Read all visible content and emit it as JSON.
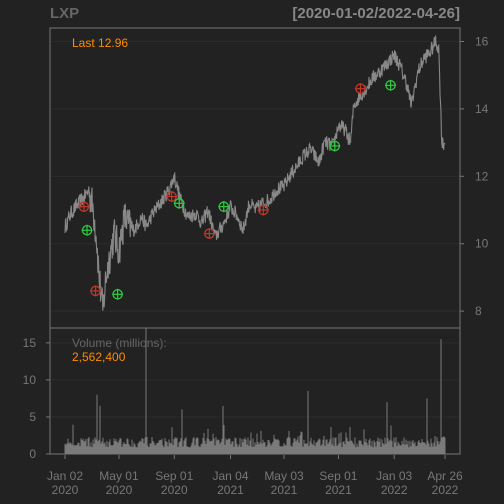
{
  "header": {
    "symbol": "LXP",
    "range": "[2020-01-02/2022-04-26]"
  },
  "colors": {
    "background": "#222222",
    "price_line": "#888888",
    "volume_bar": "#7a7a7a",
    "frame": "#777777",
    "grid": "#2c2c2c",
    "last_label": "#ff8c00",
    "buy_marker": "#2ecc40",
    "sell_marker": "#c0392b",
    "axis_text": "#777777"
  },
  "chart_data": [
    {
      "type": "line",
      "name": "price-panel",
      "annotation": "Last 12.96",
      "x_ticks": [
        {
          "date": "2020-01-02",
          "label": [
            "Jan 02",
            "2020"
          ]
        },
        {
          "date": "2020-05-01",
          "label": [
            "May 01",
            "2020"
          ]
        },
        {
          "date": "2020-09-01",
          "label": [
            "Sep 01",
            "2020"
          ]
        },
        {
          "date": "2021-01-04",
          "label": [
            "Jan 04",
            "2021"
          ]
        },
        {
          "date": "2021-05-03",
          "label": [
            "May 03",
            "2021"
          ]
        },
        {
          "date": "2021-09-01",
          "label": [
            "Sep 01",
            "2021"
          ]
        },
        {
          "date": "2022-01-03",
          "label": [
            "Jan 03",
            "2022"
          ]
        },
        {
          "date": "2022-04-26",
          "label": [
            "Apr 26",
            "2022"
          ]
        }
      ],
      "y_ticks": [
        8,
        10,
        12,
        14,
        16
      ],
      "ylim": [
        7.5,
        16.4
      ],
      "series": [
        {
          "x": [
            "2020-01-02",
            "2020-01-15",
            "2020-02-01",
            "2020-02-15",
            "2020-02-24",
            "2020-03-05",
            "2020-03-12",
            "2020-03-18",
            "2020-03-23",
            "2020-03-26",
            "2020-04-02",
            "2020-04-10",
            "2020-04-20",
            "2020-05-01",
            "2020-05-14",
            "2020-05-20",
            "2020-06-01",
            "2020-06-08",
            "2020-06-20",
            "2020-07-01",
            "2020-07-15",
            "2020-08-01",
            "2020-08-20",
            "2020-09-01",
            "2020-09-15",
            "2020-10-01",
            "2020-10-20",
            "2020-11-01",
            "2020-11-15",
            "2020-12-01",
            "2020-12-20",
            "2021-01-04",
            "2021-01-20",
            "2021-02-01",
            "2021-02-15",
            "2021-03-01",
            "2021-03-15",
            "2021-04-01",
            "2021-04-15",
            "2021-05-03",
            "2021-05-20",
            "2021-06-01",
            "2021-06-15",
            "2021-07-01",
            "2021-07-20",
            "2021-08-01",
            "2021-08-20",
            "2021-09-01",
            "2021-09-15",
            "2021-09-28",
            "2021-10-05",
            "2021-10-20",
            "2021-11-01",
            "2021-11-15",
            "2021-12-01",
            "2021-12-15",
            "2022-01-03",
            "2022-01-15",
            "2022-02-01",
            "2022-02-10",
            "2022-02-25",
            "2022-03-10",
            "2022-03-25",
            "2022-04-05",
            "2022-04-12",
            "2022-04-19",
            "2022-04-26"
          ],
          "y": [
            10.5,
            10.9,
            11.2,
            11.4,
            11.6,
            11.0,
            10.2,
            9.0,
            8.4,
            8.0,
            9.0,
            9.6,
            10.3,
            9.8,
            10.8,
            10.6,
            10.4,
            10.5,
            10.8,
            10.5,
            10.9,
            11.2,
            11.6,
            12.0,
            11.3,
            10.8,
            10.9,
            10.6,
            11.0,
            10.2,
            10.6,
            11.1,
            10.8,
            10.4,
            11.2,
            11.0,
            11.2,
            11.3,
            11.6,
            11.7,
            12.1,
            12.3,
            12.6,
            12.8,
            12.4,
            13.0,
            12.9,
            13.5,
            13.4,
            13.0,
            14.1,
            14.4,
            14.6,
            14.9,
            15.1,
            15.3,
            15.6,
            15.3,
            14.7,
            14.1,
            15.1,
            15.5,
            15.7,
            16.0,
            15.8,
            13.0,
            12.96
          ]
        }
      ],
      "markers": [
        {
          "date": "2020-02-20",
          "y": 10.4,
          "kind": "buy"
        },
        {
          "date": "2020-02-13",
          "y": 11.1,
          "kind": "sell"
        },
        {
          "date": "2020-03-10",
          "y": 8.6,
          "kind": "sell"
        },
        {
          "date": "2020-04-28",
          "y": 8.5,
          "kind": "buy"
        },
        {
          "date": "2020-08-26",
          "y": 11.4,
          "kind": "sell"
        },
        {
          "date": "2020-09-12",
          "y": 11.2,
          "kind": "buy"
        },
        {
          "date": "2020-11-18",
          "y": 10.3,
          "kind": "sell"
        },
        {
          "date": "2020-12-20",
          "y": 11.1,
          "kind": "buy"
        },
        {
          "date": "2021-03-18",
          "y": 11.0,
          "kind": "sell"
        },
        {
          "date": "2021-08-24",
          "y": 12.9,
          "kind": "buy"
        },
        {
          "date": "2021-10-20",
          "y": 14.6,
          "kind": "sell"
        },
        {
          "date": "2021-12-26",
          "y": 14.7,
          "kind": "buy"
        }
      ]
    },
    {
      "type": "bar",
      "name": "volume-panel",
      "label": "Volume (millions):",
      "value_label": "2,562,400",
      "y_ticks": [
        0,
        5,
        10,
        15
      ],
      "ylim": [
        0,
        17
      ],
      "spikes": [
        {
          "date": "2020-03-13",
          "value": 8.0
        },
        {
          "date": "2020-03-20",
          "value": 6.5
        },
        {
          "date": "2020-06-30",
          "value": 17.0
        },
        {
          "date": "2020-09-18",
          "value": 6.0
        },
        {
          "date": "2020-12-18",
          "value": 6.5
        },
        {
          "date": "2021-06-25",
          "value": 8.5
        },
        {
          "date": "2021-12-17",
          "value": 7.0
        },
        {
          "date": "2022-03-18",
          "value": 7.5
        },
        {
          "date": "2022-04-18",
          "value": 15.5
        }
      ]
    }
  ]
}
